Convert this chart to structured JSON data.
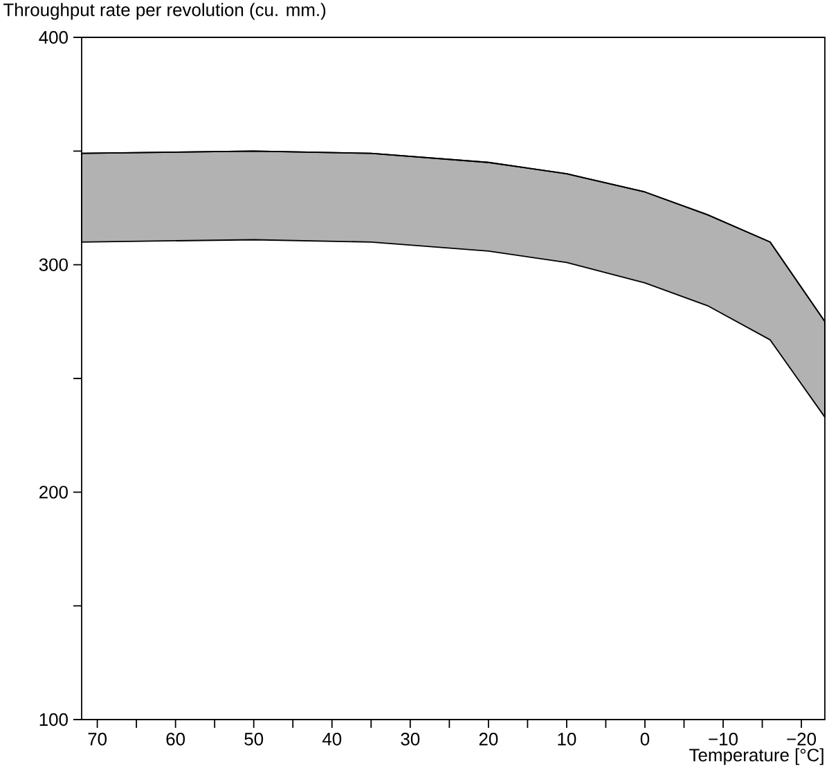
{
  "chart_data": {
    "type": "line",
    "ylabel": "Throughput rate per revolution (cu. mm.)",
    "xlabel": "Temperature [°C]",
    "x": [
      72,
      50,
      35,
      20,
      10,
      0,
      -8,
      -16,
      -23
    ],
    "series": [
      {
        "color": "#000000",
        "values": [
          349,
          350,
          349,
          345,
          340,
          332,
          322,
          310,
          275
        ],
        "upper": [
          349,
          350,
          349,
          345,
          340,
          332,
          322,
          310,
          275
        ],
        "lower": [
          310,
          311,
          310,
          306,
          301,
          292,
          282,
          267,
          233
        ]
      }
    ],
    "xlim": [
      72,
      -23
    ],
    "xticks": [
      70,
      {
        "value": 65,
        "label": null
      },
      60,
      {
        "value": 55,
        "label": null
      },
      50,
      {
        "value": 45,
        "label": null
      },
      40,
      {
        "value": 35,
        "label": null
      },
      30,
      {
        "value": 25,
        "label": null
      },
      20,
      {
        "value": 15,
        "label": null
      },
      10,
      {
        "value": 5,
        "label": null
      },
      0,
      {
        "value": -5,
        "label": null
      },
      {
        "value": -10,
        "label": "−10"
      },
      {
        "value": -15,
        "label": null
      },
      {
        "value": -20,
        "label": "−20"
      }
    ],
    "ylim": [
      100,
      400
    ],
    "yticks": [
      100,
      {
        "value": 150,
        "label": null
      },
      200,
      {
        "value": 250,
        "label": null
      },
      300,
      {
        "value": 350,
        "label": null
      },
      400
    ]
  }
}
